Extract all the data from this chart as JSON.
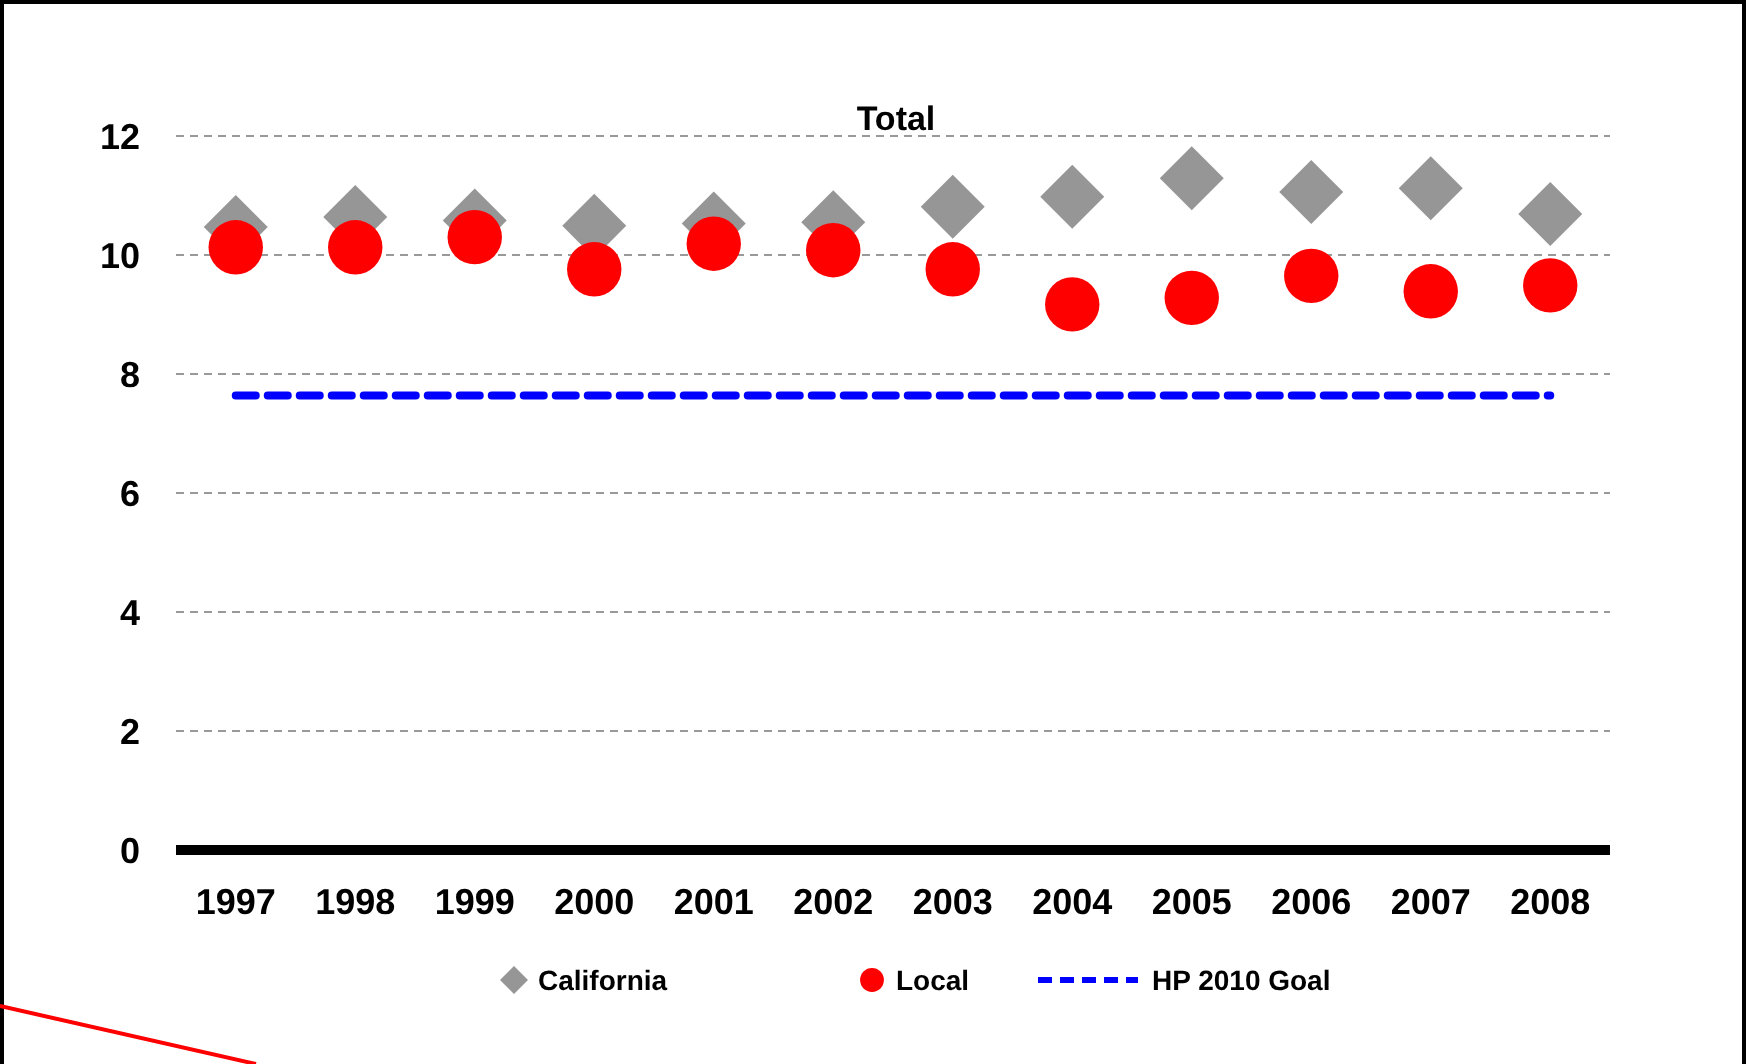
{
  "chart_data": {
    "type": "scatter",
    "title": "Total",
    "categories": [
      "1997",
      "1998",
      "1999",
      "2000",
      "2001",
      "2002",
      "2003",
      "2004",
      "2005",
      "2006",
      "2007",
      "2008"
    ],
    "series": [
      {
        "name": "California",
        "marker": "diamond",
        "color": "#969696",
        "values": [
          10.47,
          10.64,
          10.58,
          10.49,
          10.53,
          10.55,
          10.81,
          10.98,
          11.29,
          11.06,
          11.12,
          10.69
        ]
      },
      {
        "name": "Local",
        "marker": "circle",
        "color": "#ff0000",
        "values": [
          10.13,
          10.13,
          10.3,
          9.76,
          10.19,
          10.08,
          9.76,
          9.17,
          9.28,
          9.65,
          9.39,
          9.49
        ]
      },
      {
        "name": "HP 2010 Goal",
        "type": "line",
        "marker": "none",
        "line_style": "dashed",
        "color": "#0000ff",
        "values": [
          7.64,
          7.64,
          7.64,
          7.64,
          7.64,
          7.64,
          7.64,
          7.64,
          7.64,
          7.64,
          7.64,
          7.64
        ]
      }
    ],
    "ylim": [
      0,
      12
    ],
    "yticks": [
      0,
      2,
      4,
      6,
      8,
      10,
      12
    ],
    "grid": "y",
    "legend": "bottom"
  }
}
